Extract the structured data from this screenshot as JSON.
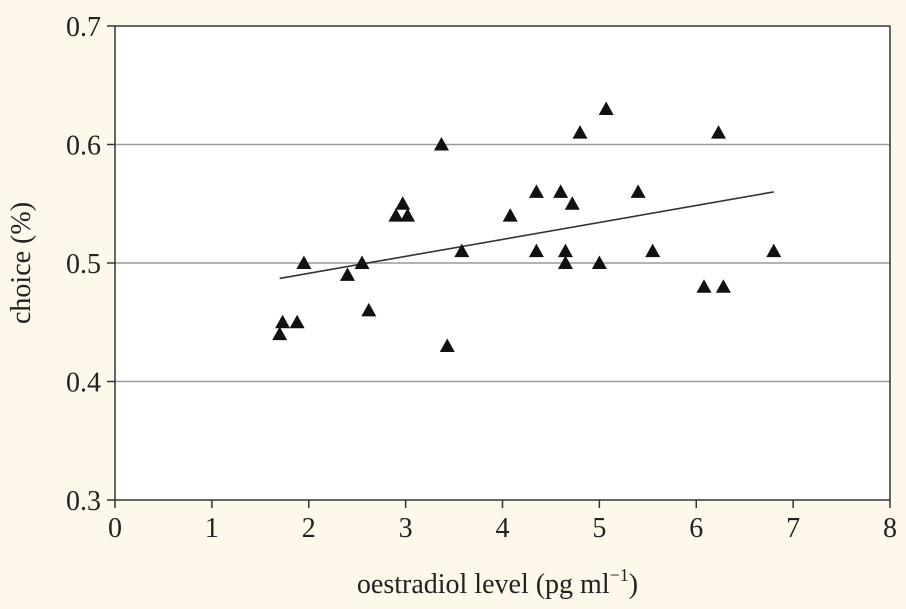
{
  "chart_data": {
    "type": "scatter",
    "title": "",
    "xlabel": "oestradiol level (pg ml",
    "xlabel_superscript": "−1",
    "xlabel_suffix": ")",
    "ylabel": "choice (%)",
    "xlim": [
      0,
      8
    ],
    "ylim": [
      0.3,
      0.7
    ],
    "x_ticks": [
      0,
      1,
      2,
      3,
      4,
      5,
      6,
      7,
      8
    ],
    "y_ticks": [
      0.3,
      0.4,
      0.5,
      0.6,
      0.7
    ],
    "x_tick_labels": [
      "0",
      "1",
      "2",
      "3",
      "4",
      "5",
      "6",
      "7",
      "8"
    ],
    "y_tick_labels": [
      "0.3",
      "0.4",
      "0.5",
      "0.6",
      "0.7"
    ],
    "grid": "horizontal",
    "marker": "triangle",
    "points": [
      {
        "x": 1.7,
        "y": 0.44
      },
      {
        "x": 1.73,
        "y": 0.45
      },
      {
        "x": 1.88,
        "y": 0.45
      },
      {
        "x": 1.95,
        "y": 0.5
      },
      {
        "x": 2.4,
        "y": 0.49
      },
      {
        "x": 2.55,
        "y": 0.5
      },
      {
        "x": 2.62,
        "y": 0.46
      },
      {
        "x": 2.9,
        "y": 0.54
      },
      {
        "x": 2.97,
        "y": 0.55
      },
      {
        "x": 3.02,
        "y": 0.54
      },
      {
        "x": 3.37,
        "y": 0.6
      },
      {
        "x": 3.43,
        "y": 0.43
      },
      {
        "x": 3.58,
        "y": 0.51
      },
      {
        "x": 4.08,
        "y": 0.54
      },
      {
        "x": 4.35,
        "y": 0.56
      },
      {
        "x": 4.35,
        "y": 0.51
      },
      {
        "x": 4.6,
        "y": 0.56
      },
      {
        "x": 4.65,
        "y": 0.51
      },
      {
        "x": 4.65,
        "y": 0.5
      },
      {
        "x": 4.72,
        "y": 0.55
      },
      {
        "x": 4.8,
        "y": 0.61
      },
      {
        "x": 5.0,
        "y": 0.5
      },
      {
        "x": 5.07,
        "y": 0.63
      },
      {
        "x": 5.4,
        "y": 0.56
      },
      {
        "x": 5.55,
        "y": 0.51
      },
      {
        "x": 6.08,
        "y": 0.48
      },
      {
        "x": 6.23,
        "y": 0.61
      },
      {
        "x": 6.28,
        "y": 0.48
      },
      {
        "x": 6.8,
        "y": 0.51
      }
    ],
    "trendline": {
      "x1": 1.7,
      "y1": 0.487,
      "x2": 6.8,
      "y2": 0.56
    },
    "colors": {
      "background": "#fdf8e9",
      "plot_bg": "#ffffff",
      "marker": "#111111",
      "grid": "#9a9a9a",
      "axis": "#333333",
      "trend": "#333333"
    }
  }
}
